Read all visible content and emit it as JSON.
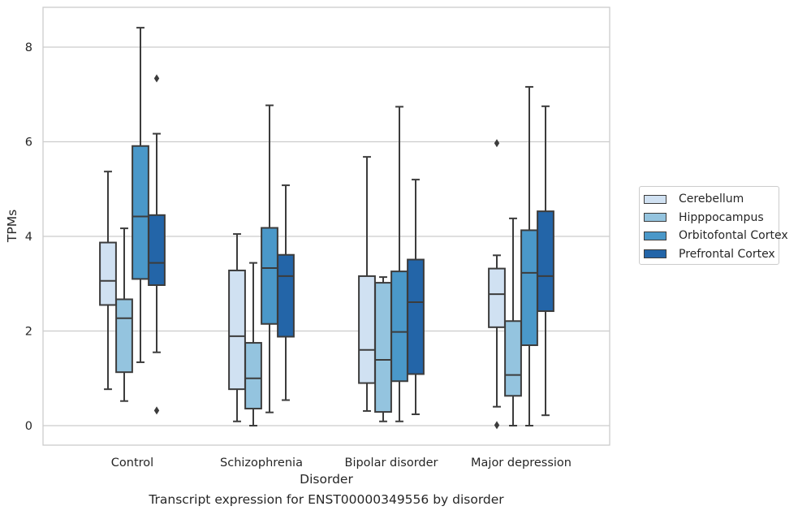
{
  "caption": "Transcript expression for ENST00000349556 by disorder",
  "chart_data": {
    "type": "box",
    "xlabel": "Disorder",
    "ylabel": "TPMs",
    "ylim": [
      -0.4,
      8.85
    ],
    "yticks": [
      0,
      2,
      4,
      6,
      8
    ],
    "grid": "horizontal",
    "legend_position": "center-right",
    "categories": [
      "Control",
      "Schizophrenia",
      "Bipolar disorder",
      "Major depression"
    ],
    "series": [
      {
        "name": "Cerebellum",
        "color": "#d0e1f2",
        "boxes": [
          {
            "whisker_low": 0.77,
            "q1": 2.55,
            "median": 3.06,
            "q3": 3.87,
            "whisker_high": 5.37,
            "outliers": []
          },
          {
            "whisker_low": 0.09,
            "q1": 0.77,
            "median": 1.89,
            "q3": 3.28,
            "whisker_high": 4.05,
            "outliers": []
          },
          {
            "whisker_low": 0.31,
            "q1": 0.9,
            "median": 1.6,
            "q3": 3.16,
            "whisker_high": 5.68,
            "outliers": []
          },
          {
            "whisker_low": 0.4,
            "q1": 2.08,
            "median": 2.78,
            "q3": 3.32,
            "whisker_high": 3.6,
            "outliers": [
              0.01,
              5.97
            ]
          }
        ]
      },
      {
        "name": "Hipppocampus",
        "color": "#94c4df",
        "boxes": [
          {
            "whisker_low": 0.52,
            "q1": 1.13,
            "median": 2.27,
            "q3": 2.67,
            "whisker_high": 4.17,
            "outliers": []
          },
          {
            "whisker_low": 0.0,
            "q1": 0.36,
            "median": 1.0,
            "q3": 1.75,
            "whisker_high": 3.44,
            "outliers": []
          },
          {
            "whisker_low": 0.09,
            "q1": 0.29,
            "median": 1.39,
            "q3": 3.02,
            "whisker_high": 3.14,
            "outliers": []
          },
          {
            "whisker_low": 0.0,
            "q1": 0.63,
            "median": 1.07,
            "q3": 2.21,
            "whisker_high": 4.38,
            "outliers": []
          }
        ]
      },
      {
        "name": "Orbitofontal Cortex",
        "color": "#4a98c9",
        "boxes": [
          {
            "whisker_low": 1.34,
            "q1": 3.1,
            "median": 4.42,
            "q3": 5.91,
            "whisker_high": 8.41,
            "outliers": []
          },
          {
            "whisker_low": 0.28,
            "q1": 2.15,
            "median": 3.33,
            "q3": 4.18,
            "whisker_high": 6.77,
            "outliers": []
          },
          {
            "whisker_low": 0.09,
            "q1": 0.94,
            "median": 1.98,
            "q3": 3.26,
            "whisker_high": 6.74,
            "outliers": []
          },
          {
            "whisker_low": 0.0,
            "q1": 1.7,
            "median": 3.23,
            "q3": 4.13,
            "whisker_high": 7.16,
            "outliers": []
          }
        ]
      },
      {
        "name": "Prefrontal Cortex",
        "color": "#2365a8",
        "boxes": [
          {
            "whisker_low": 1.55,
            "q1": 2.97,
            "median": 3.44,
            "q3": 4.45,
            "whisker_high": 6.17,
            "outliers": [
              0.32,
              7.34
            ]
          },
          {
            "whisker_low": 0.54,
            "q1": 1.88,
            "median": 3.16,
            "q3": 3.61,
            "whisker_high": 5.08,
            "outliers": []
          },
          {
            "whisker_low": 0.24,
            "q1": 1.09,
            "median": 2.61,
            "q3": 3.51,
            "whisker_high": 5.2,
            "outliers": []
          },
          {
            "whisker_low": 0.22,
            "q1": 2.42,
            "median": 3.16,
            "q3": 4.53,
            "whisker_high": 6.75,
            "outliers": []
          }
        ]
      }
    ]
  }
}
